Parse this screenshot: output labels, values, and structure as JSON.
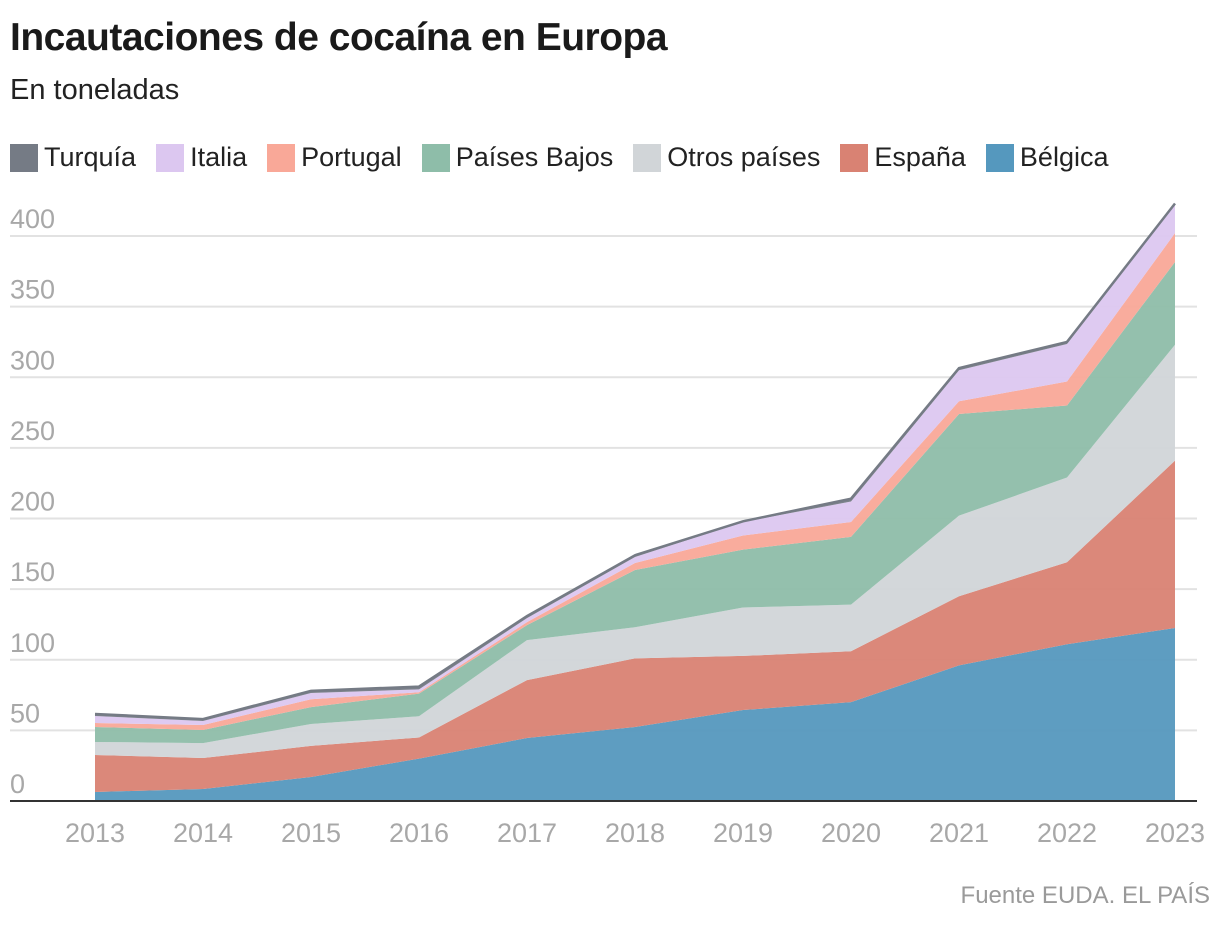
{
  "title": "Incautaciones de cocaína en Europa",
  "subtitle": "En toneladas",
  "source": "Fuente EUDA. EL PAÍS",
  "chart_data": {
    "type": "area",
    "stacked": true,
    "title": "Incautaciones de cocaína en Europa",
    "subtitle": "En toneladas",
    "x": [
      "2013",
      "2014",
      "2015",
      "2016",
      "2017",
      "2018",
      "2019",
      "2020",
      "2021",
      "2022",
      "2023"
    ],
    "ylim": [
      0,
      420
    ],
    "yticks": [
      0,
      50,
      100,
      150,
      200,
      250,
      300,
      350,
      400
    ],
    "grid": true,
    "legend_position": "top",
    "legend_order": [
      "Turquía",
      "Italia",
      "Portugal",
      "Países Bajos",
      "Otros países",
      "España",
      "Bélgica"
    ],
    "series": [
      {
        "name": "Bélgica",
        "color": "#5598be",
        "values": [
          6.4,
          8.5,
          17,
          30,
          44.6,
          52.4,
          64.4,
          70,
          96,
          111,
          122.5
        ]
      },
      {
        "name": "España",
        "color": "#d98273",
        "values": [
          26.2,
          21.9,
          22,
          15,
          41,
          48.6,
          38.3,
          36,
          49,
          58,
          118.5
        ]
      },
      {
        "name": "Otros países",
        "color": "#d1d5d8",
        "values": [
          9.2,
          10.6,
          15.5,
          15,
          28.3,
          22,
          34.3,
          33,
          57,
          60,
          82
        ]
      },
      {
        "name": "Países Bajos",
        "color": "#8ebda9",
        "values": [
          10.6,
          9.3,
          12,
          16,
          10.6,
          40.5,
          41,
          48,
          72,
          51,
          58.6
        ]
      },
      {
        "name": "Portugal",
        "color": "#f9a898",
        "values": [
          2.8,
          3.5,
          5.5,
          1,
          2.1,
          5,
          10,
          10.5,
          9,
          17,
          20.4
        ]
      },
      {
        "name": "Italia",
        "color": "#dcc7f0",
        "values": [
          5,
          2.8,
          4.5,
          2,
          2.9,
          4.2,
          9.5,
          14.5,
          22,
          26.5,
          20
        ]
      },
      {
        "name": "Turquía",
        "color": "#757b85",
        "values": [
          1.4,
          1.4,
          1.5,
          2,
          1.4,
          1.3,
          0.5,
          2,
          1.5,
          1.5,
          1
        ]
      }
    ]
  }
}
